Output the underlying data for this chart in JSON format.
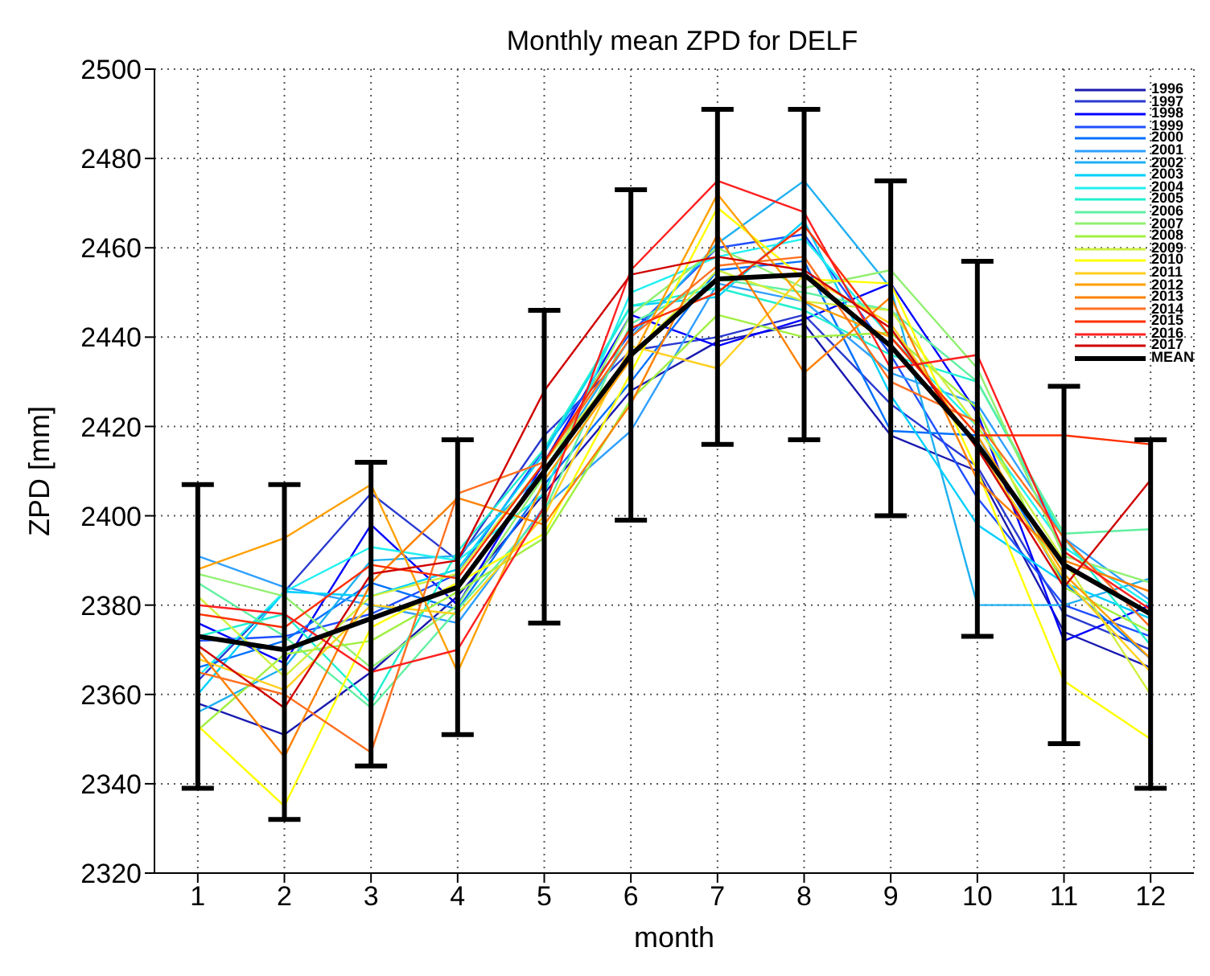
{
  "chart_data": {
    "type": "line",
    "title": "Monthly mean ZPD for DELF",
    "xlabel": "month",
    "ylabel": "ZPD [mm]",
    "x": [
      1,
      2,
      3,
      4,
      5,
      6,
      7,
      8,
      9,
      10,
      11,
      12
    ],
    "xlim": [
      0.5,
      12.5
    ],
    "xticks": [
      1,
      2,
      3,
      4,
      5,
      6,
      7,
      8,
      9,
      10,
      11,
      12
    ],
    "ylim": [
      2320,
      2500
    ],
    "yticks": [
      2320,
      2340,
      2360,
      2380,
      2400,
      2420,
      2440,
      2460,
      2480,
      2500
    ],
    "grid": true,
    "legend": "top right",
    "line_style": "solid",
    "series": [
      {
        "name": "1996",
        "color": "#1a1ab0",
        "values": [
          2358,
          2351,
          2365,
          2382,
          2405,
          2428,
          2439,
          2443,
          2418,
          2410,
          2374,
          2366
        ]
      },
      {
        "name": "1997",
        "color": "#2a3ad0",
        "values": [
          2363,
          2383,
          2405,
          2390,
          2418,
          2437,
          2440,
          2445,
          2425,
          2411,
          2378,
          2370
        ]
      },
      {
        "name": "1998",
        "color": "#0000ff",
        "values": [
          2376,
          2367,
          2398,
          2380,
          2412,
          2445,
          2438,
          2444,
          2452,
          2423,
          2372,
          2380
        ]
      },
      {
        "name": "1999",
        "color": "#1f4fff",
        "values": [
          2372,
          2373,
          2378,
          2387,
          2415,
          2441,
          2460,
          2463,
          2436,
          2404,
          2380,
          2373
        ]
      },
      {
        "name": "2000",
        "color": "#0070ff",
        "values": [
          2366,
          2372,
          2385,
          2379,
          2407,
          2430,
          2455,
          2457,
          2419,
          2418,
          2385,
          2368
        ]
      },
      {
        "name": "2001",
        "color": "#2f9fff",
        "values": [
          2391,
          2384,
          2380,
          2376,
          2402,
          2419,
          2452,
          2448,
          2432,
          2425,
          2395,
          2381
        ]
      },
      {
        "name": "2002",
        "color": "#1fb0f0",
        "values": [
          2356,
          2366,
          2390,
          2391,
          2410,
          2440,
          2461,
          2475,
          2451,
          2380,
          2380,
          2386
        ]
      },
      {
        "name": "2003",
        "color": "#00d0ff",
        "values": [
          2360,
          2383,
          2382,
          2388,
          2414,
          2447,
          2449,
          2466,
          2427,
          2398,
          2385,
          2377
        ]
      },
      {
        "name": "2004",
        "color": "#20f0f0",
        "values": [
          2364,
          2383,
          2393,
          2390,
          2405,
          2450,
          2458,
          2462,
          2440,
          2420,
          2393,
          2380
        ]
      },
      {
        "name": "2005",
        "color": "#20f0d0",
        "values": [
          2373,
          2378,
          2358,
          2392,
          2415,
          2447,
          2451,
          2446,
          2436,
          2430,
          2395,
          2371
        ]
      },
      {
        "name": "2006",
        "color": "#60f0a0",
        "values": [
          2385,
          2373,
          2357,
          2379,
          2401,
          2443,
          2453,
          2450,
          2446,
          2430,
          2396,
          2397
        ]
      },
      {
        "name": "2007",
        "color": "#90f070",
        "values": [
          2387,
          2382,
          2366,
          2380,
          2409,
          2445,
          2460,
          2451,
          2455,
          2433,
          2391,
          2385
        ]
      },
      {
        "name": "2008",
        "color": "#a0f040",
        "values": [
          2352,
          2369,
          2372,
          2383,
          2395,
          2426,
          2445,
          2440,
          2441,
          2424,
          2384,
          2374
        ]
      },
      {
        "name": "2009",
        "color": "#d0f040",
        "values": [
          2382,
          2364,
          2382,
          2387,
          2412,
          2436,
          2455,
          2448,
          2446,
          2420,
          2390,
          2360
        ]
      },
      {
        "name": "2010",
        "color": "#ffff00",
        "values": [
          2353,
          2335,
          2375,
          2385,
          2396,
          2432,
          2469,
          2453,
          2452,
          2410,
          2363,
          2350
        ]
      },
      {
        "name": "2011",
        "color": "#ffd020",
        "values": [
          2368,
          2361,
          2380,
          2378,
          2400,
          2438,
          2433,
          2454,
          2443,
          2415,
          2386,
          2365
        ]
      },
      {
        "name": "2012",
        "color": "#ffa000",
        "values": [
          2388,
          2395,
          2407,
          2365,
          2408,
          2435,
          2472,
          2448,
          2440,
          2418,
          2387,
          2368
        ]
      },
      {
        "name": "2013",
        "color": "#ff8000",
        "values": [
          2370,
          2346,
          2385,
          2404,
          2398,
          2425,
          2463,
          2432,
          2449,
          2408,
          2390,
          2383
        ]
      },
      {
        "name": "2014",
        "color": "#ff7020",
        "values": [
          2365,
          2360,
          2347,
          2405,
          2412,
          2440,
          2456,
          2458,
          2430,
          2421,
          2395,
          2375
        ]
      },
      {
        "name": "2015",
        "color": "#ff3000",
        "values": [
          2378,
          2375,
          2389,
          2386,
          2412,
          2442,
          2450,
          2465,
          2440,
          2418,
          2418,
          2416
        ]
      },
      {
        "name": "2016",
        "color": "#ff2020",
        "values": [
          2380,
          2378,
          2365,
          2370,
          2402,
          2455,
          2475,
          2468,
          2433,
          2436,
          2392,
          2379
        ]
      },
      {
        "name": "2017",
        "color": "#d00000",
        "values": [
          2371,
          2357,
          2387,
          2390,
          2428,
          2454,
          2458,
          2455,
          2442,
          2415,
          2384,
          2408
        ]
      },
      {
        "name": "MEAN",
        "color": "#000000",
        "values": [
          2373,
          2370,
          2377,
          2384,
          2410,
          2436,
          2453,
          2454,
          2438,
          2416,
          2389,
          2378
        ],
        "errors": [
          [
            2339,
            2407
          ],
          [
            2332,
            2407
          ],
          [
            2344,
            2412
          ],
          [
            2351,
            2417
          ],
          [
            2376,
            2446
          ],
          [
            2399,
            2473
          ],
          [
            2416,
            2491
          ],
          [
            2417,
            2491
          ],
          [
            2400,
            2475
          ],
          [
            2373,
            2457
          ],
          [
            2349,
            2429
          ],
          [
            2339,
            2417
          ]
        ]
      }
    ]
  }
}
